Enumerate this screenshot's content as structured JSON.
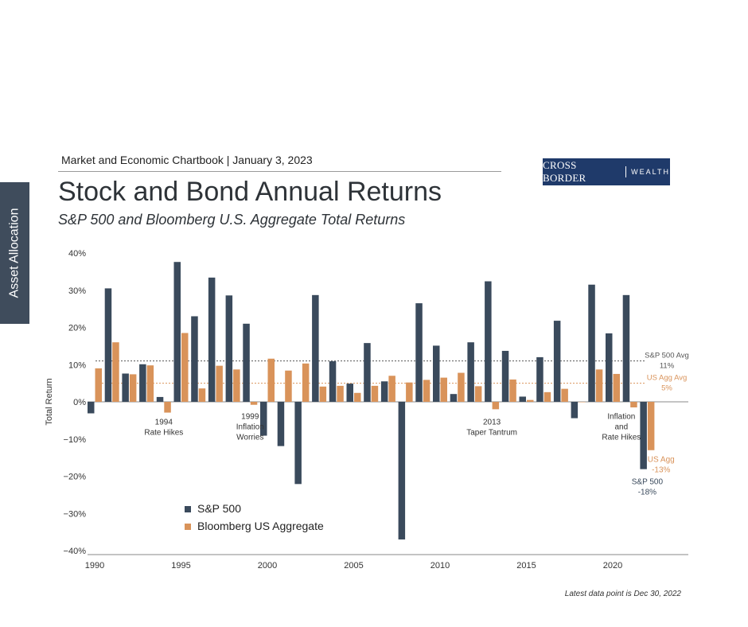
{
  "side_tab": {
    "label": "Asset Allocation"
  },
  "header": {
    "line": "Market and Economic Chartbook | January 3, 2023"
  },
  "logo": {
    "brand": "CROSS BORDER",
    "word": "WEALTH"
  },
  "footnote": "Latest data point is Dec 30, 2022",
  "colors": {
    "sp500": "#3a4a5c",
    "agg": "#d9935a",
    "sidebar": "#3f4c5c",
    "logo_bg": "#1f3a6a"
  },
  "chart_data": {
    "type": "bar",
    "title": "Stock and Bond Annual Returns",
    "subtitle": "S&P 500 and Bloomberg U.S. Aggregate Total Returns",
    "ylabel": "Total Return",
    "xlabel": "",
    "ylim": [
      -40,
      40
    ],
    "y_ticks": [
      "40%",
      "30%",
      "20%",
      "10%",
      "0%",
      "−10%",
      "−20%",
      "−30%",
      "−40%"
    ],
    "y_tick_values": [
      40,
      30,
      20,
      10,
      0,
      -10,
      -20,
      -30,
      -40
    ],
    "x_tick_labels": [
      "1990",
      "1995",
      "2000",
      "2005",
      "2010",
      "2015",
      "2020"
    ],
    "x_tick_values": [
      1990,
      1995,
      2000,
      2005,
      2010,
      2015,
      2020
    ],
    "categories": [
      1990,
      1991,
      1992,
      1993,
      1994,
      1995,
      1996,
      1997,
      1998,
      1999,
      2000,
      2001,
      2002,
      2003,
      2004,
      2005,
      2006,
      2007,
      2008,
      2009,
      2010,
      2011,
      2012,
      2013,
      2014,
      2015,
      2016,
      2017,
      2018,
      2019,
      2020,
      2021,
      2022
    ],
    "series": [
      {
        "name": "S&P 500",
        "values": [
          -3.1,
          30.5,
          7.6,
          10.1,
          1.3,
          37.6,
          23.0,
          33.4,
          28.6,
          21.0,
          -9.1,
          -11.9,
          -22.1,
          28.7,
          10.9,
          4.9,
          15.8,
          5.5,
          -37.0,
          26.5,
          15.1,
          2.1,
          16.0,
          32.4,
          13.7,
          1.4,
          12.0,
          21.8,
          -4.4,
          31.5,
          18.4,
          28.7,
          -18.1
        ]
      },
      {
        "name": "Bloomberg US Aggregate",
        "values": [
          9.0,
          16.0,
          7.4,
          9.8,
          -2.9,
          18.5,
          3.6,
          9.7,
          8.7,
          -0.8,
          11.6,
          8.4,
          10.3,
          4.1,
          4.3,
          2.4,
          4.3,
          7.0,
          5.2,
          5.9,
          6.5,
          7.8,
          4.2,
          -2.0,
          6.0,
          0.5,
          2.6,
          3.5,
          0.0,
          8.7,
          7.5,
          -1.5,
          -13.0
        ]
      }
    ],
    "reference_lines": [
      {
        "label": "S&P 500 Avg",
        "value_label": "11%",
        "value": 11
      },
      {
        "label": "US Agg Avg",
        "value_label": "5%",
        "value": 5
      }
    ],
    "annotations": [
      {
        "x": 1994,
        "y": -4,
        "lines": [
          "1994",
          "Rate Hikes"
        ]
      },
      {
        "x": 1999,
        "y": -2.5,
        "lines": [
          "1999",
          "Inflation",
          "Worries"
        ]
      },
      {
        "x": 2013,
        "y": -4,
        "lines": [
          "2013",
          "Taper Tantrum"
        ]
      },
      {
        "x": 2020.5,
        "y": -2.5,
        "lines": [
          "Inflation",
          "and",
          "Rate Hikes"
        ]
      },
      {
        "x": 2022.8,
        "y": -14,
        "lines": [
          "US Agg",
          "-13%"
        ],
        "color": "agg"
      },
      {
        "x": 2022.0,
        "y": -20,
        "lines": [
          "S&P 500",
          "-18%"
        ],
        "color": "sp500"
      }
    ],
    "legend": {
      "position": "bottom-left",
      "items": [
        "S&P 500",
        "Bloomberg US Aggregate"
      ]
    },
    "grid": false
  }
}
